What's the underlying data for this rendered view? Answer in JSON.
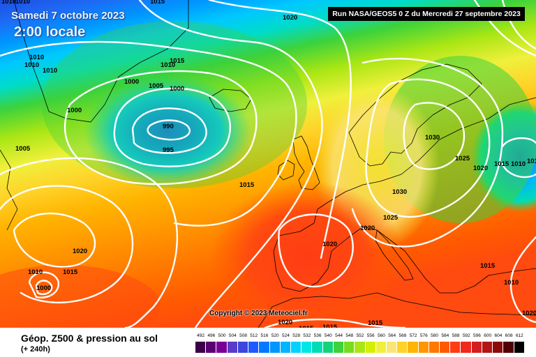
{
  "header": {
    "date": "Samedi 7 octobre 2023",
    "local_time": "2:00 locale",
    "run_info": "Run NASA/GEOS5 0 Z du Mercredi 27 septembre 2023"
  },
  "copyright": "Copyright © 2023 Meteociel.fr",
  "footer": {
    "title": "Géop. Z500 & pression au sol",
    "subtitle": "(+ 240h)"
  },
  "legend": {
    "labels": [
      "492",
      "496",
      "500",
      "504",
      "508",
      "512",
      "516",
      "520",
      "524",
      "528",
      "532",
      "536",
      "540",
      "544",
      "548",
      "552",
      "556",
      "560",
      "564",
      "568",
      "572",
      "576",
      "580",
      "584",
      "588",
      "592",
      "596",
      "600",
      "604",
      "608",
      "612"
    ],
    "colors": [
      "#3c0048",
      "#5a0070",
      "#780096",
      "#5a3cc8",
      "#3c46dc",
      "#1e5aff",
      "#0078ff",
      "#0096ff",
      "#00b4ff",
      "#00d2ff",
      "#00e6e6",
      "#00dcb4",
      "#14d278",
      "#3cd23c",
      "#78dc1e",
      "#aae614",
      "#d2f000",
      "#f0f03c",
      "#fae678",
      "#ffd228",
      "#ffb400",
      "#ff9600",
      "#ff7800",
      "#ff5a00",
      "#ff3c14",
      "#f0281e",
      "#d21e1e",
      "#b41414",
      "#8c0a0a",
      "#500000",
      "#000000"
    ]
  },
  "isobars": {
    "labels": [
      "1010",
      "1010",
      "1020",
      "1015",
      "1010",
      "1010",
      "1010",
      "1015",
      "1010",
      "1000",
      "1005",
      "1000",
      "1000",
      "990",
      "995",
      "1005",
      "1015",
      "1020",
      "1030",
      "1025",
      "1020",
      "1015",
      "1010",
      "1030",
      "1025",
      "1020",
      "1020",
      "1020",
      "1010",
      "1015",
      "1000",
      "1015",
      "1015",
      "1010",
      "1020",
      "1015",
      "1015",
      "1010"
    ]
  },
  "map_colors": {
    "deep_blue": "#1e5aff",
    "cyan": "#00c8ff",
    "green": "#3cd23c",
    "yellow": "#f0f03c",
    "orange": "#ff9600",
    "red": "#ff3c14"
  }
}
